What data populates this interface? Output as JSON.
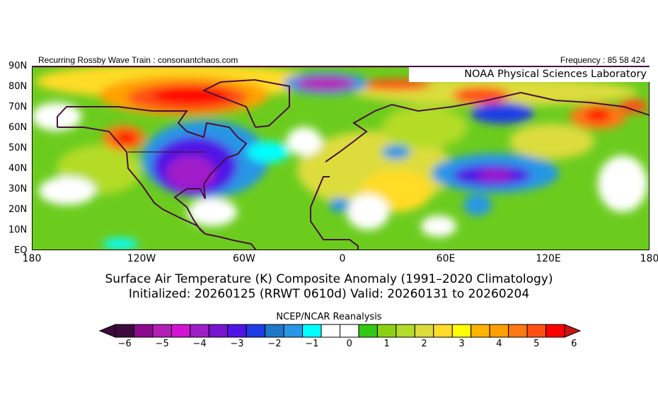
{
  "header": {
    "left_text": "Recurring Rossby Wave Train : consonantchaos.com",
    "right_text": "Frequency : 85 58 424",
    "lab_label": "NOAA Physical Sciences Laboratory"
  },
  "axes": {
    "lat_labels": [
      "90N",
      "80N",
      "70N",
      "60N",
      "50N",
      "40N",
      "30N",
      "20N",
      "10N",
      "EQ"
    ],
    "lon_labels": [
      "180",
      "120W",
      "60W",
      "0",
      "60E",
      "120E",
      "180"
    ]
  },
  "title": {
    "line1": "Surface Air Temperature (K) Composite Anomaly (1991–2020 Climatology)",
    "line2": "Initialized: 20260125 (RRWT 0610d) Valid: 20260131 to 20260204"
  },
  "colorbar": {
    "label": "NCEP/NCAR Reanalysis",
    "ticks": [
      "−6",
      "−5",
      "−4",
      "−3",
      "−2",
      "−1",
      "0",
      "1",
      "2",
      "3",
      "4",
      "5",
      "6"
    ],
    "colors": [
      "#3c0a3c",
      "#8c0a8c",
      "#b41eb4",
      "#d214d2",
      "#a01ec8",
      "#7814d2",
      "#5014e6",
      "#1e3ce6",
      "#1e78c8",
      "#2896e6",
      "#00ffff",
      "#ffffff",
      "#ffffff",
      "#32c814",
      "#8cd214",
      "#b4dc28",
      "#dcdc3c",
      "#ffdc28",
      "#ffff00",
      "#ffb400",
      "#ffa000",
      "#ff7814",
      "#ff5014",
      "#ff0000"
    ],
    "low_color": "#3c0a3c",
    "high_color": "#c81414"
  }
}
